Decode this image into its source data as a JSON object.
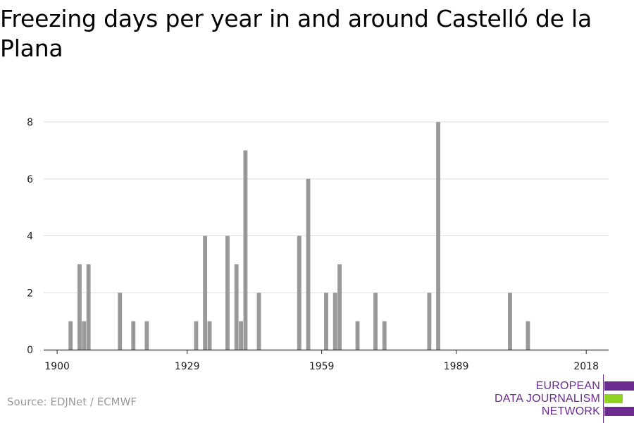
{
  "title": "Freezing days per year in and around Castelló de la Plana",
  "source": "Source: EDJNet / ECMWF",
  "logo": {
    "lines": [
      "EUROPEAN",
      "DATA JOURNALISM",
      "NETWORK"
    ],
    "colors": {
      "purple": "#6c2c91",
      "green": "#8ed321"
    }
  },
  "chart_data": {
    "type": "bar",
    "title": "Freezing days per year in and around Castelló de la Plana",
    "xlabel": "",
    "ylabel": "",
    "xlim": [
      1900,
      2018
    ],
    "ylim": [
      0,
      8
    ],
    "x_ticks": [
      1900,
      1929,
      1959,
      1989,
      2018
    ],
    "y_ticks": [
      0,
      2,
      4,
      6,
      8
    ],
    "grid": true,
    "bar_color": "#999999",
    "x": [
      1903,
      1905,
      1906,
      1907,
      1914,
      1917,
      1920,
      1931,
      1933,
      1934,
      1938,
      1940,
      1941,
      1942,
      1945,
      1954,
      1956,
      1960,
      1962,
      1963,
      1967,
      1971,
      1973,
      1983,
      1985,
      2001,
      2005
    ],
    "values": [
      1,
      3,
      1,
      3,
      2,
      1,
      1,
      1,
      4,
      1,
      4,
      3,
      1,
      7,
      2,
      4,
      6,
      2,
      2,
      3,
      1,
      2,
      1,
      2,
      8,
      2,
      1
    ]
  }
}
